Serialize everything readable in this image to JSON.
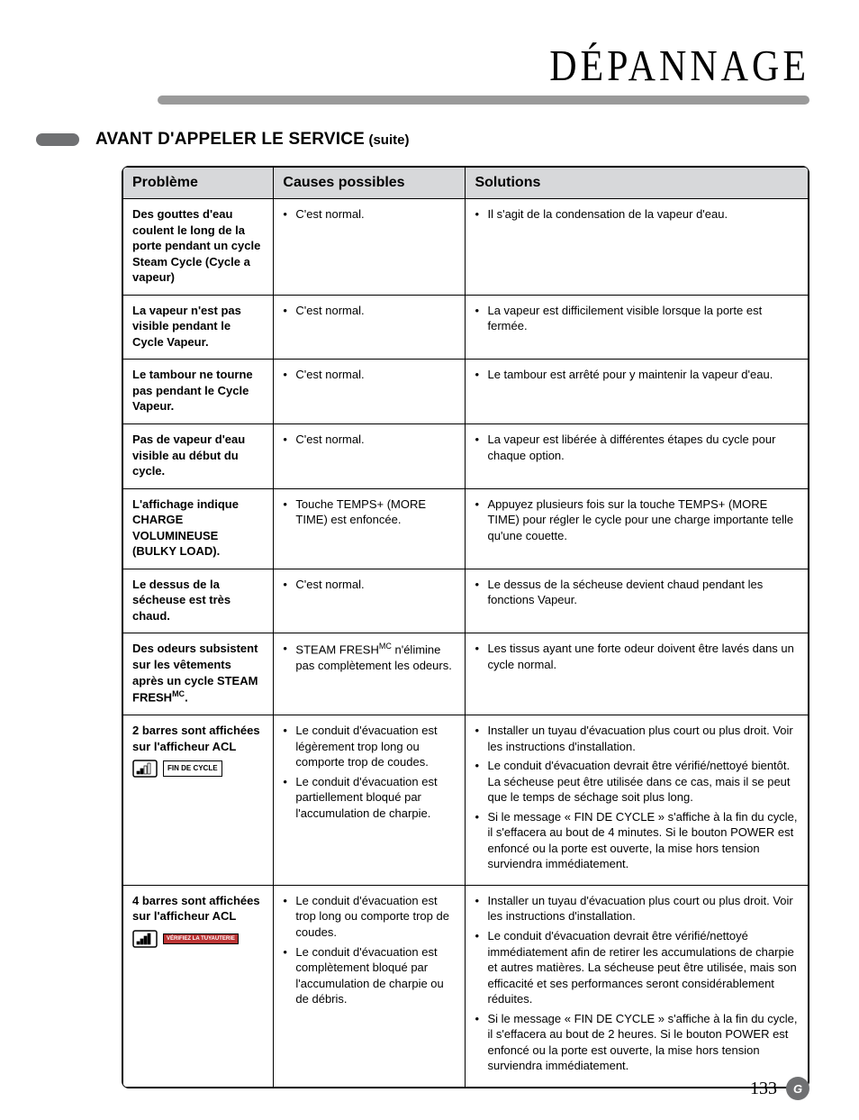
{
  "page_title": "DÉPANNAGE",
  "section_title": "AVANT D'APPELER LE SERVICE",
  "section_suffix": "(suite)",
  "colors": {
    "header_bg": "#d7d8da",
    "rule_bar": "#9a9a9a",
    "pill": "#6f7072",
    "text": "#000000",
    "paper": "#ffffff"
  },
  "table": {
    "headers": [
      "Problème",
      "Causes possibles",
      "Solutions"
    ],
    "rows": [
      {
        "problem": "Des gouttes d'eau coulent le long de la porte pendant un cycle Steam Cycle (Cycle a vapeur)",
        "causes": [
          "C'est normal."
        ],
        "solutions": [
          "Il s'agit de la condensation de la vapeur d'eau."
        ]
      },
      {
        "problem": "La vapeur n'est pas visible pendant le Cycle Vapeur.",
        "causes": [
          "C'est normal."
        ],
        "solutions": [
          "La vapeur est difficilement visible lorsque la porte est fermée."
        ]
      },
      {
        "problem": "Le tambour ne tourne pas pendant le Cycle Vapeur.",
        "causes": [
          "C'est normal."
        ],
        "solutions": [
          "Le tambour est arrêté pour y maintenir la vapeur d'eau."
        ]
      },
      {
        "problem": "Pas de vapeur d'eau visible au début du cycle.",
        "causes": [
          "C'est normal."
        ],
        "solutions": [
          "La vapeur est libérée à différentes étapes du cycle pour chaque option."
        ]
      },
      {
        "problem": "L'affichage indique CHARGE VOLUMINEUSE (BULKY LOAD).",
        "causes": [
          "Touche TEMPS+ (MORE TIME) est enfoncée."
        ],
        "solutions": [
          "Appuyez plusieurs fois sur la touche TEMPS+ (MORE TIME) pour régler le cycle pour une charge importante telle qu'une couette."
        ]
      },
      {
        "problem": "Le dessus de la sécheuse est très chaud.",
        "causes": [
          "C'est normal."
        ],
        "solutions": [
          "Le dessus de la sécheuse devient chaud pendant les fonctions Vapeur."
        ]
      },
      {
        "problem_html": "Des odeurs subsistent sur les vêtements après un cycle STEAM FRESH<span class='sup'>MC</span>.",
        "causes_html": [
          "STEAM FRESH<span class='sup'>MC</span> n'élimine pas complètement les odeurs."
        ],
        "solutions": [
          "Les tissus ayant une forte odeur doivent être lavés dans un cycle normal."
        ]
      },
      {
        "problem": "2 barres sont affichées sur l'afficheur ACL",
        "lcd_icon": "2bar",
        "lcd_text": "FIN DE CYCLE",
        "causes": [
          "Le conduit d'évacuation est légèrement trop long ou comporte trop de coudes.",
          "Le conduit d'évacuation est partiellement bloqué par l'accumulation de charpie."
        ],
        "solutions": [
          "Installer un tuyau d'évacuation plus court ou plus droit. Voir les instructions d'installation.",
          "Le conduit d'évacuation devrait être vérifié/nettoyé bientôt. La sécheuse peut être utilisée dans ce cas, mais il se peut que le temps de séchage soit plus long.",
          "Si le message « FIN DE CYCLE » s'affiche à la fin du cycle, il s'effacera au bout de 4 minutes. Si le bouton POWER est enfoncé ou la porte est ouverte, la mise hors tension surviendra immédiatement."
        ]
      },
      {
        "problem": "4 barres sont affichées sur l'afficheur ACL",
        "lcd_icon": "4bar",
        "lcd_text_red": "VÉRIFIEZ LA TUYAUTERIE",
        "causes": [
          "Le conduit d'évacuation est trop long ou comporte trop de coudes.",
          "Le conduit d'évacuation est complètement bloqué par l'accumulation de charpie ou de débris."
        ],
        "solutions": [
          "Installer un tuyau d'évacuation plus court ou plus droit. Voir les instructions d'installation.",
          "Le conduit d'évacuation devrait être vérifié/nettoyé immédiatement afin de retirer les accumulations de charpie et autres matières. La sécheuse peut être utilisée, mais son efficacité et ses performances seront considérablement réduites.",
          "Si le message « FIN DE CYCLE » s'affiche à la fin du cycle, il s'effacera au bout de 2 heures. Si le bouton POWER est enfoncé ou la porte est ouverte, la mise hors tension surviendra immédiatement."
        ]
      }
    ]
  },
  "page_number": "133"
}
